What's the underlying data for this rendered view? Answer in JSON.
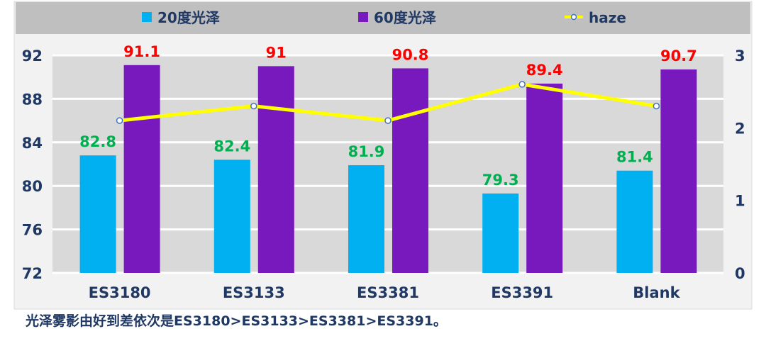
{
  "chart_data": {
    "type": "bar",
    "categories": [
      "ES3180",
      "ES3133",
      "ES3381",
      "ES3391",
      "Blank"
    ],
    "series": [
      {
        "name": "20度光泽",
        "type": "bar",
        "axis": "left",
        "color": "#00b0f0",
        "label_color": "#00b050",
        "values": [
          82.8,
          82.4,
          81.9,
          79.3,
          81.4
        ]
      },
      {
        "name": "60度光泽",
        "type": "bar",
        "axis": "left",
        "color": "#7719bd",
        "label_color": "#ff0000",
        "values": [
          91.1,
          91,
          90.8,
          89.4,
          90.7
        ]
      },
      {
        "name": "haze",
        "type": "line",
        "axis": "right",
        "color": "#ffff00",
        "marker_color": "#4472c4",
        "values": [
          2.1,
          2.3,
          2.1,
          2.6,
          2.3
        ]
      }
    ],
    "y_left": {
      "range": [
        72,
        92
      ],
      "ticks": [
        72,
        76,
        80,
        84,
        88,
        92
      ]
    },
    "y_right": {
      "range": [
        0,
        3
      ],
      "ticks": [
        0,
        1,
        2,
        3
      ]
    },
    "grid": true,
    "legend_position": "top"
  },
  "note": "光泽雾影由好到差依次是ES3180>ES3133>ES3381>ES3391。"
}
